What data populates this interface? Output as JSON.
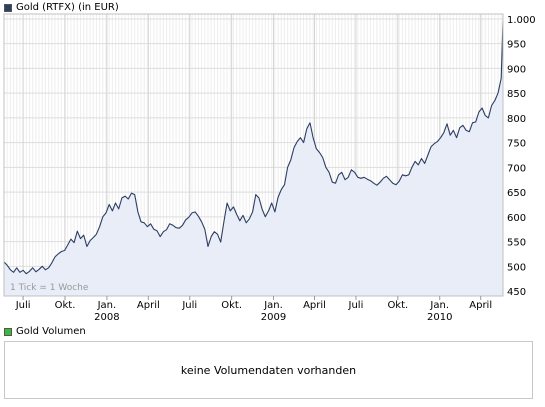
{
  "price_panel": {
    "legend_label": "Gold (RTFX) (in EUR)",
    "legend_color": "#2d3e63",
    "tick_note": "1 Tick = 1 Woche"
  },
  "volume_panel": {
    "legend_label": "Gold Volumen",
    "legend_color": "#3cb83c",
    "message": "keine Volumendaten vorhanden"
  },
  "chart_data": {
    "type": "area",
    "line_color": "#2d3e63",
    "fill_color": "#e8edf8",
    "y_ticks": [
      450,
      500,
      550,
      600,
      650,
      700,
      750,
      800,
      850,
      900,
      950,
      1000
    ],
    "y_tick_labels": [
      "450",
      "500",
      "550",
      "600",
      "650",
      "700",
      "750",
      "800",
      "850",
      "900",
      "950",
      "1.000"
    ],
    "ylim": [
      440,
      1010
    ],
    "x_ticks": [
      {
        "date": "2007-07-01",
        "label": "Juli",
        "year": ""
      },
      {
        "date": "2007-10-01",
        "label": "Okt.",
        "year": ""
      },
      {
        "date": "2008-01-01",
        "label": "Jan.",
        "year": "2008"
      },
      {
        "date": "2008-04-01",
        "label": "April",
        "year": ""
      },
      {
        "date": "2008-07-01",
        "label": "Juli",
        "year": ""
      },
      {
        "date": "2008-10-01",
        "label": "Okt.",
        "year": ""
      },
      {
        "date": "2009-01-01",
        "label": "Jan.",
        "year": "2009"
      },
      {
        "date": "2009-04-01",
        "label": "April",
        "year": ""
      },
      {
        "date": "2009-07-01",
        "label": "Juli",
        "year": ""
      },
      {
        "date": "2009-10-01",
        "label": "Okt.",
        "year": ""
      },
      {
        "date": "2010-01-01",
        "label": "Jan.",
        "year": "2010"
      },
      {
        "date": "2010-04-01",
        "label": "April",
        "year": ""
      }
    ],
    "xlim": [
      "2007-05-20",
      "2010-05-20"
    ],
    "grid": true,
    "series": [
      {
        "points": [
          [
            "2007-05-20",
            509
          ],
          [
            "2007-05-27",
            502
          ],
          [
            "2007-06-03",
            493
          ],
          [
            "2007-06-10",
            488
          ],
          [
            "2007-06-17",
            497
          ],
          [
            "2007-06-24",
            488
          ],
          [
            "2007-07-01",
            492
          ],
          [
            "2007-07-08",
            485
          ],
          [
            "2007-07-15",
            490
          ],
          [
            "2007-07-22",
            497
          ],
          [
            "2007-07-29",
            489
          ],
          [
            "2007-08-05",
            494
          ],
          [
            "2007-08-12",
            500
          ],
          [
            "2007-08-19",
            493
          ],
          [
            "2007-08-26",
            497
          ],
          [
            "2007-09-02",
            507
          ],
          [
            "2007-09-09",
            519
          ],
          [
            "2007-09-16",
            525
          ],
          [
            "2007-09-23",
            530
          ],
          [
            "2007-09-30",
            532
          ],
          [
            "2007-10-07",
            543
          ],
          [
            "2007-10-14",
            555
          ],
          [
            "2007-10-21",
            548
          ],
          [
            "2007-10-28",
            571
          ],
          [
            "2007-11-04",
            556
          ],
          [
            "2007-11-11",
            563
          ],
          [
            "2007-11-18",
            540
          ],
          [
            "2007-11-25",
            552
          ],
          [
            "2007-12-02",
            558
          ],
          [
            "2007-12-09",
            565
          ],
          [
            "2007-12-16",
            580
          ],
          [
            "2007-12-23",
            600
          ],
          [
            "2007-12-30",
            608
          ],
          [
            "2008-01-06",
            625
          ],
          [
            "2008-01-13",
            612
          ],
          [
            "2008-01-20",
            628
          ],
          [
            "2008-01-27",
            616
          ],
          [
            "2008-02-03",
            638
          ],
          [
            "2008-02-10",
            642
          ],
          [
            "2008-02-17",
            636
          ],
          [
            "2008-02-24",
            648
          ],
          [
            "2008-03-02",
            645
          ],
          [
            "2008-03-09",
            610
          ],
          [
            "2008-03-16",
            590
          ],
          [
            "2008-03-23",
            588
          ],
          [
            "2008-03-30",
            580
          ],
          [
            "2008-04-06",
            586
          ],
          [
            "2008-04-13",
            575
          ],
          [
            "2008-04-20",
            572
          ],
          [
            "2008-04-27",
            560
          ],
          [
            "2008-05-04",
            570
          ],
          [
            "2008-05-11",
            574
          ],
          [
            "2008-05-18",
            586
          ],
          [
            "2008-05-25",
            583
          ],
          [
            "2008-06-01",
            578
          ],
          [
            "2008-06-08",
            577
          ],
          [
            "2008-06-15",
            583
          ],
          [
            "2008-06-22",
            594
          ],
          [
            "2008-06-29",
            599
          ],
          [
            "2008-07-06",
            608
          ],
          [
            "2008-07-13",
            610
          ],
          [
            "2008-07-20",
            601
          ],
          [
            "2008-07-27",
            590
          ],
          [
            "2008-08-03",
            575
          ],
          [
            "2008-08-10",
            540
          ],
          [
            "2008-08-17",
            560
          ],
          [
            "2008-08-24",
            570
          ],
          [
            "2008-08-31",
            565
          ],
          [
            "2008-09-07",
            549
          ],
          [
            "2008-09-14",
            590
          ],
          [
            "2008-09-21",
            628
          ],
          [
            "2008-09-28",
            612
          ],
          [
            "2008-10-05",
            620
          ],
          [
            "2008-10-12",
            605
          ],
          [
            "2008-10-19",
            592
          ],
          [
            "2008-10-26",
            603
          ],
          [
            "2008-11-02",
            588
          ],
          [
            "2008-11-09",
            596
          ],
          [
            "2008-11-16",
            610
          ],
          [
            "2008-11-23",
            645
          ],
          [
            "2008-11-30",
            638
          ],
          [
            "2008-12-07",
            615
          ],
          [
            "2008-12-14",
            600
          ],
          [
            "2008-12-21",
            612
          ],
          [
            "2008-12-28",
            628
          ],
          [
            "2009-01-04",
            610
          ],
          [
            "2009-01-11",
            640
          ],
          [
            "2009-01-18",
            655
          ],
          [
            "2009-01-25",
            665
          ],
          [
            "2009-02-01",
            700
          ],
          [
            "2009-02-08",
            715
          ],
          [
            "2009-02-15",
            740
          ],
          [
            "2009-02-22",
            752
          ],
          [
            "2009-03-01",
            760
          ],
          [
            "2009-03-08",
            750
          ],
          [
            "2009-03-15",
            778
          ],
          [
            "2009-03-22",
            790
          ],
          [
            "2009-03-29",
            760
          ],
          [
            "2009-04-05",
            738
          ],
          [
            "2009-04-12",
            730
          ],
          [
            "2009-04-19",
            720
          ],
          [
            "2009-04-26",
            700
          ],
          [
            "2009-05-03",
            690
          ],
          [
            "2009-05-10",
            670
          ],
          [
            "2009-05-17",
            668
          ],
          [
            "2009-05-24",
            685
          ],
          [
            "2009-05-31",
            690
          ],
          [
            "2009-06-07",
            675
          ],
          [
            "2009-06-14",
            680
          ],
          [
            "2009-06-21",
            695
          ],
          [
            "2009-06-28",
            690
          ],
          [
            "2009-07-05",
            680
          ],
          [
            "2009-07-12",
            678
          ],
          [
            "2009-07-19",
            680
          ],
          [
            "2009-07-26",
            676
          ],
          [
            "2009-08-02",
            673
          ],
          [
            "2009-08-09",
            668
          ],
          [
            "2009-08-16",
            664
          ],
          [
            "2009-08-23",
            670
          ],
          [
            "2009-08-30",
            678
          ],
          [
            "2009-09-06",
            682
          ],
          [
            "2009-09-13",
            675
          ],
          [
            "2009-09-20",
            668
          ],
          [
            "2009-09-27",
            665
          ],
          [
            "2009-10-04",
            672
          ],
          [
            "2009-10-11",
            685
          ],
          [
            "2009-10-18",
            683
          ],
          [
            "2009-10-25",
            685
          ],
          [
            "2009-11-01",
            700
          ],
          [
            "2009-11-08",
            712
          ],
          [
            "2009-11-15",
            705
          ],
          [
            "2009-11-22",
            718
          ],
          [
            "2009-11-29",
            708
          ],
          [
            "2009-12-06",
            725
          ],
          [
            "2009-12-13",
            742
          ],
          [
            "2009-12-20",
            748
          ],
          [
            "2009-12-27",
            752
          ],
          [
            "2010-01-03",
            760
          ],
          [
            "2010-01-10",
            770
          ],
          [
            "2010-01-17",
            788
          ],
          [
            "2010-01-24",
            765
          ],
          [
            "2010-01-31",
            775
          ],
          [
            "2010-02-07",
            760
          ],
          [
            "2010-02-14",
            780
          ],
          [
            "2010-02-21",
            785
          ],
          [
            "2010-02-28",
            775
          ],
          [
            "2010-03-07",
            772
          ],
          [
            "2010-03-14",
            790
          ],
          [
            "2010-03-21",
            792
          ],
          [
            "2010-03-28",
            812
          ],
          [
            "2010-04-04",
            820
          ],
          [
            "2010-04-11",
            805
          ],
          [
            "2010-04-18",
            800
          ],
          [
            "2010-04-25",
            825
          ],
          [
            "2010-05-02",
            835
          ],
          [
            "2010-05-09",
            850
          ],
          [
            "2010-05-16",
            880
          ],
          [
            "2010-05-20",
            995
          ]
        ]
      }
    ]
  }
}
